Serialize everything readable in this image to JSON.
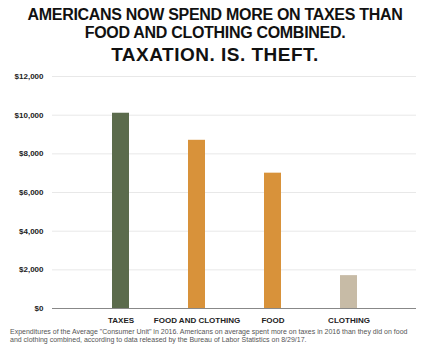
{
  "chart_data": {
    "type": "bar",
    "title": "AMERICANS NOW SPEND MORE ON TAXES THAN FOOD AND CLOTHING COMBINED.",
    "subtitle": "TAXATION. IS. THEFT.",
    "caption": "Expenditures of the Average \"Consumer Unit\" in 2016. Americans on average spent more on taxes in 2016 than they did on food and clothing combined, according to data released by the Bureau of Labor Statistics on 8/29/17.",
    "categories": [
      "TAXES",
      "FOOD AND CLOTHING",
      "FOOD",
      "CLOTHING"
    ],
    "values": [
      10100,
      8700,
      7000,
      1700
    ],
    "colors": [
      "#5b6b4c",
      "#d8923a",
      "#d8923a",
      "#c7bba6"
    ],
    "ylim": [
      0,
      12000
    ],
    "yticks": [
      {
        "value": 0,
        "label": "$0"
      },
      {
        "value": 2000,
        "label": "$2,000"
      },
      {
        "value": 4000,
        "label": "$4,000"
      },
      {
        "value": 6000,
        "label": "$6,000"
      },
      {
        "value": 8000,
        "label": "$8,000"
      },
      {
        "value": 10000,
        "label": "$10,000"
      },
      {
        "value": 12000,
        "label": "$12,000"
      }
    ],
    "grid": true
  }
}
